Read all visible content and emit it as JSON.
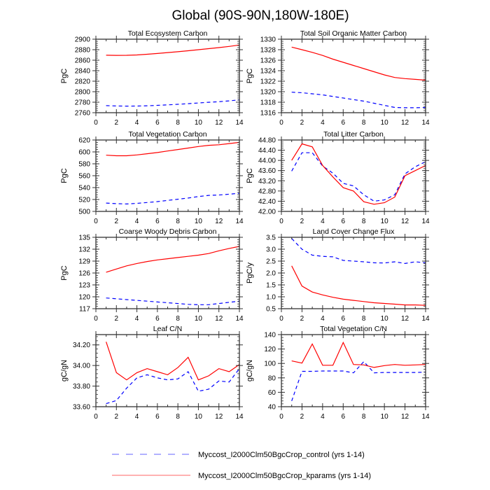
{
  "figure": {
    "title": "Global (90S-90N,180W-180E)"
  },
  "colors": {
    "control": "#0000ff",
    "kparams": "#ff0000",
    "frame": "#333333"
  },
  "legend": {
    "placement": "bottom",
    "items": [
      {
        "label": "Myccost_I2000Clm50BgcCrop_control (yrs 1-14)",
        "style": "dashed",
        "color": "#0000ff"
      },
      {
        "label": "Myccost_I2000Clm50BgcCrop_kparams (yrs 1-14)",
        "style": "solid",
        "color": "#ff0000"
      }
    ]
  },
  "chart_data": [
    {
      "type": "line",
      "title": "Total Ecosystem Carbon",
      "ylabel": "PgC",
      "xlabel": "",
      "xlim": [
        0,
        14
      ],
      "ylim": [
        2760,
        2900
      ],
      "xticks": [
        "0",
        "2",
        "4",
        "6",
        "8",
        "10",
        "12",
        "14"
      ],
      "yticks": [
        "2760",
        "2780",
        "2800",
        "2820",
        "2840",
        "2860",
        "2880",
        "2900"
      ],
      "x": [
        1,
        2,
        3,
        4,
        5,
        6,
        7,
        8,
        9,
        10,
        11,
        12,
        13,
        14
      ],
      "series": [
        {
          "name": "Myccost_I2000Clm50BgcCrop_control (yrs 1-14)",
          "values": [
            2773.5,
            2772.8,
            2772.5,
            2772.7,
            2773.2,
            2774,
            2775,
            2776,
            2777.2,
            2778.5,
            2779.8,
            2781,
            2782.5,
            2784.5
          ]
        },
        {
          "name": "Myccost_I2000Clm50BgcCrop_kparams (yrs 1-14)",
          "values": [
            2869.5,
            2869.2,
            2869.3,
            2870,
            2871.3,
            2872.8,
            2874.5,
            2876.2,
            2878,
            2880,
            2882,
            2884,
            2886.3,
            2889
          ]
        }
      ]
    },
    {
      "type": "line",
      "title": "Total Soil Organic Matter Carbon",
      "ylabel": "PgC",
      "xlabel": "",
      "xlim": [
        0,
        14
      ],
      "ylim": [
        1316,
        1330
      ],
      "xticks": [
        "0",
        "2",
        "4",
        "6",
        "8",
        "10",
        "12",
        "14"
      ],
      "yticks": [
        "1316",
        "1318",
        "1320",
        "1322",
        "1324",
        "1326",
        "1328",
        "1330"
      ],
      "x": [
        1,
        2,
        3,
        4,
        5,
        6,
        7,
        8,
        9,
        10,
        11,
        12,
        13,
        14
      ],
      "series": [
        {
          "name": "Myccost_I2000Clm50BgcCrop_control (yrs 1-14)",
          "values": [
            1319.9,
            1319.8,
            1319.6,
            1319.4,
            1319.1,
            1318.8,
            1318.5,
            1318.2,
            1317.8,
            1317.4,
            1317.0,
            1316.95,
            1316.95,
            1317.0
          ]
        },
        {
          "name": "Myccost_I2000Clm50BgcCrop_kparams (yrs 1-14)",
          "values": [
            1328.5,
            1328.0,
            1327.5,
            1326.9,
            1326.2,
            1325.6,
            1325.0,
            1324.4,
            1323.8,
            1323.2,
            1322.7,
            1322.5,
            1322.35,
            1322.2
          ]
        }
      ]
    },
    {
      "type": "line",
      "title": "Total Vegetation Carbon",
      "ylabel": "PgC",
      "xlabel": "",
      "xlim": [
        0,
        14
      ],
      "ylim": [
        500,
        620
      ],
      "xticks": [
        "0",
        "2",
        "4",
        "6",
        "8",
        "10",
        "12",
        "14"
      ],
      "yticks": [
        "500",
        "520",
        "540",
        "560",
        "580",
        "600",
        "620"
      ],
      "x": [
        1,
        2,
        3,
        4,
        5,
        6,
        7,
        8,
        9,
        10,
        11,
        12,
        13,
        14
      ],
      "series": [
        {
          "name": "Myccost_I2000Clm50BgcCrop_control (yrs 1-14)",
          "values": [
            514,
            513,
            512.5,
            513.5,
            515,
            516.5,
            518.5,
            520.5,
            522.5,
            525,
            527,
            527.5,
            529,
            530.5
          ]
        },
        {
          "name": "Myccost_I2000Clm50BgcCrop_kparams (yrs 1-14)",
          "values": [
            594.5,
            593.5,
            593.5,
            595,
            597,
            599,
            601.5,
            604,
            606.5,
            609,
            611,
            612,
            614,
            616
          ]
        }
      ]
    },
    {
      "type": "line",
      "title": "Total Litter Carbon",
      "ylabel": "PgC",
      "xlabel": "",
      "xlim": [
        0,
        14
      ],
      "ylim": [
        42.0,
        44.8
      ],
      "xticks": [
        "0",
        "2",
        "4",
        "6",
        "8",
        "10",
        "12",
        "14"
      ],
      "yticks": [
        "42.00",
        "42.40",
        "42.80",
        "43.20",
        "43.60",
        "44.00",
        "44.40",
        "44.80"
      ],
      "x": [
        1,
        2,
        3,
        4,
        5,
        6,
        7,
        8,
        9,
        10,
        11,
        12,
        13,
        14
      ],
      "series": [
        {
          "name": "Myccost_I2000Clm50BgcCrop_control (yrs 1-14)",
          "values": [
            43.58,
            44.3,
            44.3,
            43.78,
            43.5,
            43.1,
            43.0,
            42.65,
            42.4,
            42.45,
            42.65,
            43.47,
            43.75,
            43.95
          ]
        },
        {
          "name": "Myccost_I2000Clm50BgcCrop_kparams (yrs 1-14)",
          "values": [
            44.0,
            44.65,
            44.53,
            43.8,
            43.35,
            42.93,
            42.8,
            42.38,
            42.28,
            42.34,
            42.56,
            43.4,
            43.6,
            43.8
          ]
        }
      ]
    },
    {
      "type": "line",
      "title": "Coarse Woody Debris Carbon",
      "ylabel": "PgC",
      "xlabel": "",
      "xlim": [
        0,
        14
      ],
      "ylim": [
        117,
        135
      ],
      "xticks": [
        "0",
        "2",
        "4",
        "6",
        "8",
        "10",
        "12",
        "14"
      ],
      "yticks": [
        "117",
        "120",
        "123",
        "126",
        "129",
        "132",
        "135"
      ],
      "x": [
        1,
        2,
        3,
        4,
        5,
        6,
        7,
        8,
        9,
        10,
        11,
        12,
        13,
        14
      ],
      "series": [
        {
          "name": "Myccost_I2000Clm50BgcCrop_control (yrs 1-14)",
          "values": [
            119.7,
            119.5,
            119.3,
            119.1,
            118.9,
            118.7,
            118.5,
            118.3,
            118.1,
            118.0,
            118.0,
            118.3,
            118.6,
            118.9
          ]
        },
        {
          "name": "Myccost_I2000Clm50BgcCrop_kparams (yrs 1-14)",
          "values": [
            126.2,
            127.0,
            127.8,
            128.4,
            128.9,
            129.3,
            129.6,
            129.9,
            130.2,
            130.5,
            130.9,
            131.6,
            132.2,
            132.7
          ]
        }
      ]
    },
    {
      "type": "line",
      "title": "Land Cover Change Flux",
      "ylabel": "PgC/y",
      "xlabel": "",
      "xlim": [
        0,
        14
      ],
      "ylim": [
        0.5,
        3.5
      ],
      "xticks": [
        "0",
        "2",
        "4",
        "6",
        "8",
        "10",
        "12",
        "14"
      ],
      "yticks": [
        "0.5",
        "1.0",
        "1.5",
        "2.0",
        "2.5",
        "3.0",
        "3.5"
      ],
      "x": [
        1,
        2,
        3,
        4,
        5,
        6,
        7,
        8,
        9,
        10,
        11,
        12,
        13,
        14
      ],
      "series": [
        {
          "name": "Myccost_I2000Clm50BgcCrop_control (yrs 1-14)",
          "values": [
            3.45,
            3.0,
            2.75,
            2.7,
            2.68,
            2.53,
            2.5,
            2.47,
            2.43,
            2.42,
            2.47,
            2.4,
            2.47,
            2.43
          ]
        },
        {
          "name": "Myccost_I2000Clm50BgcCrop_kparams (yrs 1-14)",
          "values": [
            2.3,
            1.45,
            1.2,
            1.08,
            0.98,
            0.9,
            0.85,
            0.8,
            0.75,
            0.72,
            0.69,
            0.66,
            0.66,
            0.64
          ]
        }
      ]
    },
    {
      "type": "line",
      "title": "Leaf C/N",
      "ylabel": "gC/gN",
      "xlabel": "",
      "xlim": [
        0,
        14
      ],
      "ylim": [
        33.6,
        34.3
      ],
      "xticks": [
        "0",
        "2",
        "4",
        "6",
        "8",
        "10",
        "12",
        "14"
      ],
      "yticks": [
        "33.60",
        "33.80",
        "34.00",
        "34.20"
      ],
      "ytick_values": [
        33.6,
        33.8,
        34.0,
        34.2
      ],
      "x": [
        1,
        2,
        3,
        4,
        5,
        6,
        7,
        8,
        9,
        10,
        11,
        12,
        13,
        14
      ],
      "series": [
        {
          "name": "Myccost_I2000Clm50BgcCrop_control (yrs 1-14)",
          "values": [
            33.63,
            33.66,
            33.78,
            33.88,
            33.91,
            33.88,
            33.86,
            33.87,
            33.94,
            33.75,
            33.77,
            33.85,
            33.84,
            33.97
          ]
        },
        {
          "name": "Myccost_I2000Clm50BgcCrop_kparams (yrs 1-14)",
          "values": [
            34.23,
            33.93,
            33.86,
            33.93,
            33.97,
            33.94,
            33.91,
            33.98,
            34.08,
            33.86,
            33.9,
            33.97,
            33.94,
            34.01
          ]
        }
      ]
    },
    {
      "type": "line",
      "title": "Total Vegetation C/N",
      "ylabel": "gC/gN",
      "xlabel": "",
      "xlim": [
        0,
        14
      ],
      "ylim": [
        40,
        140
      ],
      "xticks": [
        "0",
        "2",
        "4",
        "6",
        "8",
        "10",
        "12",
        "14"
      ],
      "yticks": [
        "40",
        "60",
        "80",
        "100",
        "120",
        "140"
      ],
      "x": [
        1,
        2,
        3,
        4,
        5,
        6,
        7,
        8,
        9,
        10,
        11,
        12,
        13,
        14
      ],
      "series": [
        {
          "name": "Myccost_I2000Clm50BgcCrop_control (yrs 1-14)",
          "values": [
            48,
            89,
            89,
            89.5,
            89.5,
            89.5,
            87,
            102.5,
            87,
            87.5,
            87.5,
            87.5,
            87.5,
            88
          ]
        },
        {
          "name": "Myccost_I2000Clm50BgcCrop_kparams (yrs 1-14)",
          "values": [
            103.5,
            100.5,
            127,
            97.5,
            97.5,
            129,
            98.5,
            98,
            94.5,
            97,
            98.5,
            97.5,
            98,
            98.5
          ]
        }
      ]
    }
  ]
}
